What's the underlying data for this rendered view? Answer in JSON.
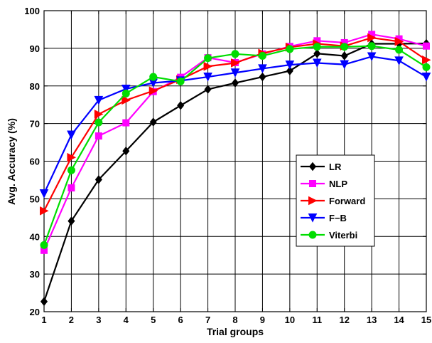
{
  "chart_data": {
    "type": "line",
    "xlabel": "Trial groups",
    "ylabel": "Avg. Accuracy (%)",
    "x": [
      1,
      2,
      3,
      4,
      5,
      6,
      7,
      8,
      9,
      10,
      11,
      12,
      13,
      14,
      15
    ],
    "xlim": [
      1,
      15
    ],
    "ylim": [
      20,
      100
    ],
    "yticks": [
      20,
      30,
      40,
      50,
      60,
      70,
      80,
      90,
      100
    ],
    "grid": true,
    "legend_position": "right",
    "series": [
      {
        "name": "LR",
        "color": "#000000",
        "marker": "diamond",
        "values": [
          22.7,
          44.1,
          55.1,
          62.7,
          70.4,
          74.8,
          79.1,
          80.8,
          82.4,
          84.0,
          88.6,
          88.0,
          91.2,
          91.2,
          91.3
        ]
      },
      {
        "name": "NLP",
        "color": "#ff00ff",
        "marker": "square",
        "values": [
          36.3,
          52.9,
          66.7,
          70.2,
          78.5,
          82.3,
          87.5,
          86.2,
          88.5,
          90.5,
          92.0,
          91.5,
          93.7,
          92.5,
          90.6
        ]
      },
      {
        "name": "Forward",
        "color": "#ff0000",
        "marker": "triangle-right",
        "values": [
          46.8,
          61.0,
          72.5,
          76.2,
          78.7,
          81.7,
          85.2,
          86.1,
          88.7,
          90.3,
          91.2,
          90.6,
          92.8,
          91.8,
          86.9
        ]
      },
      {
        "name": "F−B",
        "color": "#0000ff",
        "marker": "triangle-down",
        "values": [
          51.4,
          67.0,
          76.2,
          79.2,
          80.8,
          81.4,
          82.4,
          83.5,
          84.6,
          85.6,
          86.1,
          85.7,
          87.8,
          86.7,
          82.4
        ]
      },
      {
        "name": "Viterbi",
        "color": "#00dd00",
        "marker": "circle",
        "values": [
          37.7,
          57.6,
          70.3,
          78.0,
          82.4,
          81.2,
          87.4,
          88.5,
          88.0,
          89.8,
          90.4,
          90.4,
          90.6,
          89.6,
          85.0
        ]
      }
    ]
  }
}
